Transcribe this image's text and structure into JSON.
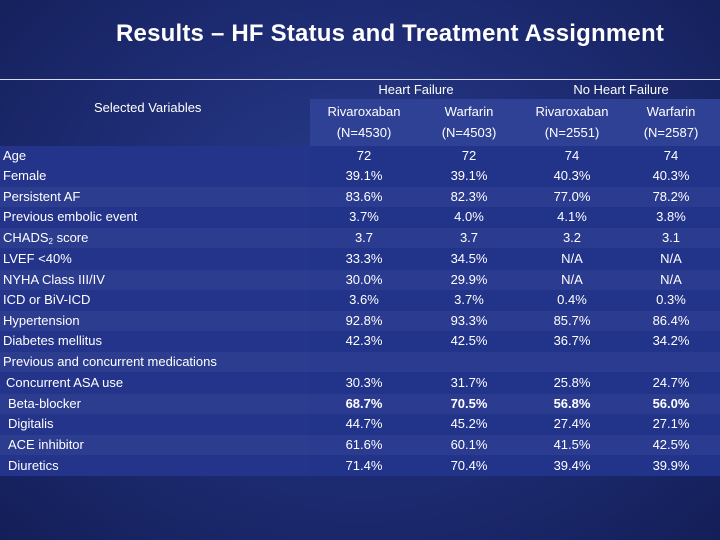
{
  "title": "Results – HF Status and Treatment Assignment",
  "groups": {
    "hf": "Heart Failure",
    "no_hf": "No Heart Failure"
  },
  "selected_variables_label": "Selected Variables",
  "columns": [
    {
      "drug": "Rivaroxaban",
      "n": "(N=4530)"
    },
    {
      "drug": "Warfarin",
      "n": "(N=4503)"
    },
    {
      "drug": "Rivaroxaban",
      "n": "(N=2551)"
    },
    {
      "drug": "Warfarin",
      "n": "(N=2587)"
    }
  ],
  "rows": [
    {
      "label": "Age",
      "values": [
        "72",
        "72",
        "74",
        "74"
      ]
    },
    {
      "label": "Female",
      "values": [
        "39.1%",
        "39.1%",
        "40.3%",
        "40.3%"
      ]
    },
    {
      "label": "Persistent AF",
      "values": [
        "83.6%",
        "82.3%",
        "77.0%",
        "78.2%"
      ]
    },
    {
      "label": "Previous embolic event",
      "values": [
        "3.7%",
        "4.0%",
        "4.1%",
        "3.8%"
      ]
    },
    {
      "label": "CHADS",
      "label_sub": "2",
      "label_suffix": " score",
      "values": [
        "3.7",
        "3.7",
        "3.2",
        "3.1"
      ]
    },
    {
      "label": "LVEF <40%",
      "values": [
        "33.3%",
        "34.5%",
        "N/A",
        "N/A"
      ]
    },
    {
      "label": "NYHA Class III/IV",
      "values": [
        "30.0%",
        "29.9%",
        "N/A",
        "N/A"
      ]
    },
    {
      "label": "ICD or BiV-ICD",
      "values": [
        "3.6%",
        "3.7%",
        "0.4%",
        "0.3%"
      ]
    },
    {
      "label": "Hypertension",
      "values": [
        "92.8%",
        "93.3%",
        "85.7%",
        "86.4%"
      ]
    },
    {
      "label": "Diabetes mellitus",
      "values": [
        "42.3%",
        "42.5%",
        "36.7%",
        "34.2%"
      ]
    },
    {
      "label": "Previous and concurrent medications",
      "values": [
        "",
        "",
        "",
        ""
      ]
    },
    {
      "label": "Concurrent ASA use",
      "values": [
        "30.3%",
        "31.7%",
        "25.8%",
        "24.7%"
      ]
    },
    {
      "label": "Beta-blocker",
      "values": [
        "68.7%",
        "70.5%",
        "56.8%",
        "56.0%"
      ]
    },
    {
      "label": "Digitalis",
      "values": [
        "44.7%",
        "45.2%",
        "27.4%",
        "27.1%"
      ]
    },
    {
      "label": "ACE inhibitor",
      "values": [
        "61.6%",
        "60.1%",
        "41.5%",
        "42.5%"
      ]
    },
    {
      "label": "Diuretics",
      "values": [
        "71.4%",
        "70.4%",
        "39.4%",
        "39.9%"
      ]
    }
  ]
}
